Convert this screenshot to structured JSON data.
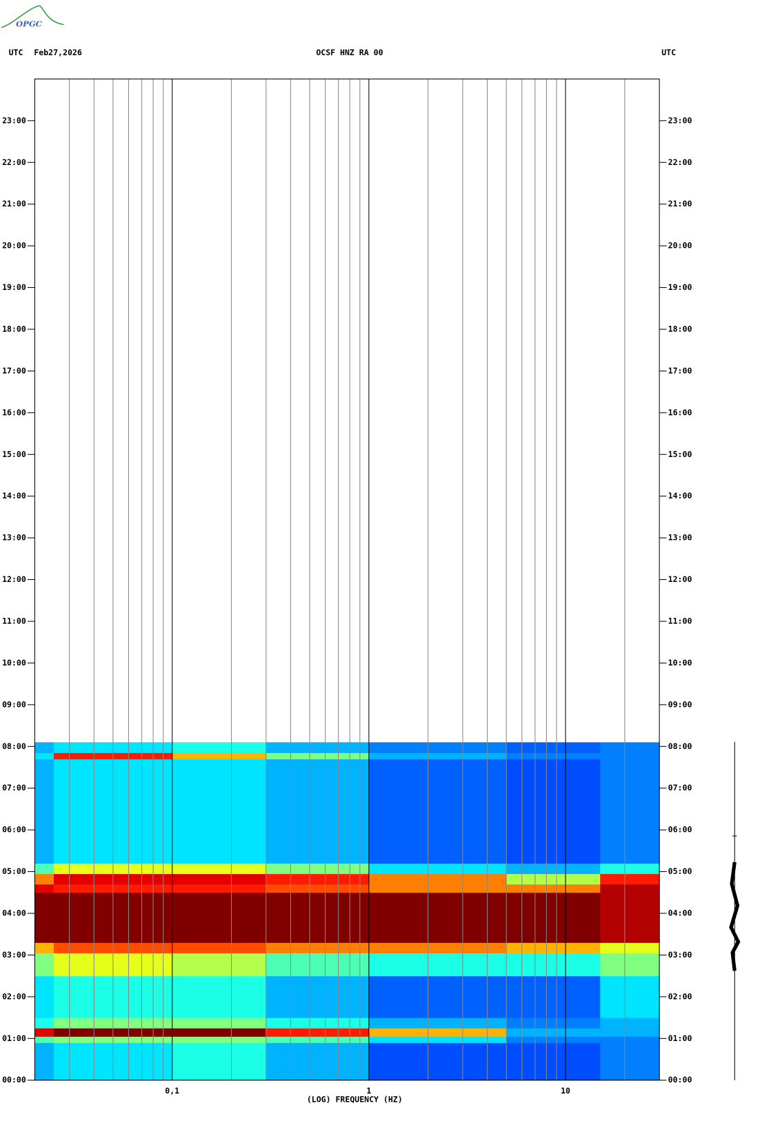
{
  "chart_data": {
    "type": "spectrogram",
    "logo": "OPGC",
    "left_header": "UTC",
    "date": "Feb27,2026",
    "title": "OCSF HNZ RA 00",
    "right_header": "UTC",
    "xlabel": "(LOG) FREQUENCY (HZ)",
    "xscale": "log",
    "xlim": [
      0.02,
      30
    ],
    "xticks": [
      {
        "value": 0.1,
        "label": "0,1"
      },
      1,
      10
    ],
    "xminor": [
      0.03,
      0.04,
      0.05,
      0.06,
      0.07,
      0.08,
      0.09,
      0.2,
      0.3,
      0.4,
      0.5,
      0.6,
      0.7,
      0.8,
      0.9,
      2,
      3,
      4,
      5,
      6,
      7,
      8,
      9,
      20
    ],
    "ylim": [
      0,
      24
    ],
    "yticks": [
      {
        "value": 0,
        "label": "00:00"
      },
      {
        "value": 1,
        "label": "01:00"
      },
      {
        "value": 2,
        "label": "02:00"
      },
      {
        "value": 3,
        "label": "03:00"
      },
      {
        "value": 4,
        "label": "04:00"
      },
      {
        "value": 5,
        "label": "05:00"
      },
      {
        "value": 6,
        "label": "06:00"
      },
      {
        "value": 7,
        "label": "07:00"
      },
      {
        "value": 8,
        "label": "08:00"
      },
      {
        "value": 9,
        "label": "09:00"
      },
      {
        "value": 10,
        "label": "10:00"
      },
      {
        "value": 11,
        "label": "11:00"
      },
      {
        "value": 12,
        "label": "12:00"
      },
      {
        "value": 13,
        "label": "13:00"
      },
      {
        "value": 14,
        "label": "14:00"
      },
      {
        "value": 15,
        "label": "15:00"
      },
      {
        "value": 16,
        "label": "16:00"
      },
      {
        "value": 17,
        "label": "17:00"
      },
      {
        "value": 18,
        "label": "18:00"
      },
      {
        "value": 19,
        "label": "19:00"
      },
      {
        "value": 20,
        "label": "20:00"
      },
      {
        "value": 21,
        "label": "21:00"
      },
      {
        "value": 22,
        "label": "22:00"
      },
      {
        "value": 23,
        "label": "23:00"
      }
    ],
    "colormap": "jet",
    "zlim": [
      0,
      1
    ],
    "freq_edges": [
      0.02,
      0.025,
      0.1,
      0.3,
      1,
      5,
      15,
      30
    ],
    "time_edges": [
      0,
      0.9,
      1.05,
      1.25,
      1.5,
      2.5,
      3.05,
      3.3,
      4.5,
      4.7,
      4.95,
      5.2,
      7.7,
      7.85,
      8.1
    ],
    "z": [
      [
        0.3,
        0.35,
        0.4,
        0.3,
        0.2,
        0.2,
        0.25
      ],
      [
        0.45,
        0.5,
        0.5,
        0.45,
        0.35,
        0.25,
        0.25
      ],
      [
        0.9,
        1,
        1,
        0.85,
        0.7,
        0.3,
        0.3
      ],
      [
        0.4,
        0.5,
        0.5,
        0.4,
        0.3,
        0.25,
        0.3
      ],
      [
        0.35,
        0.4,
        0.4,
        0.3,
        0.22,
        0.22,
        0.35
      ],
      [
        0.5,
        0.6,
        0.55,
        0.45,
        0.4,
        0.4,
        0.5
      ],
      [
        0.7,
        0.8,
        0.8,
        0.75,
        0.75,
        0.7,
        0.6
      ],
      [
        1,
        1,
        1,
        1,
        1,
        1,
        0.95
      ],
      [
        0.9,
        0.85,
        0.85,
        0.8,
        0.75,
        0.75,
        0.95
      ],
      [
        0.75,
        0.9,
        0.9,
        0.85,
        0.75,
        0.55,
        0.85
      ],
      [
        0.45,
        0.6,
        0.6,
        0.5,
        0.35,
        0.3,
        0.4
      ],
      [
        0.3,
        0.35,
        0.35,
        0.3,
        0.22,
        0.2,
        0.25
      ],
      [
        0.35,
        0.85,
        0.7,
        0.5,
        0.3,
        0.25,
        0.25
      ],
      [
        0.3,
        0.35,
        0.4,
        0.3,
        0.25,
        0.22,
        0.25
      ]
    ]
  }
}
